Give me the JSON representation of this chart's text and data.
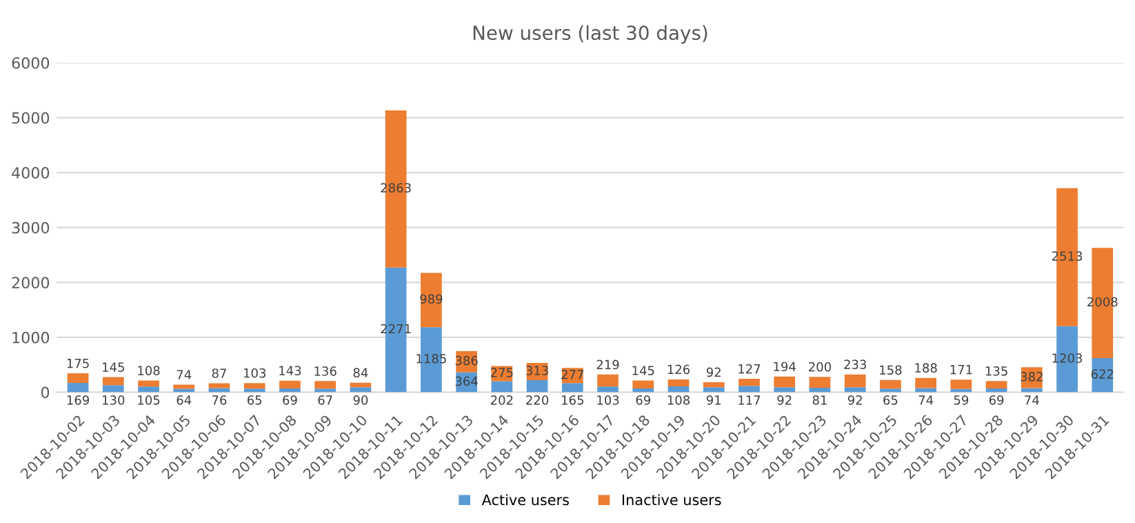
{
  "chart_data": {
    "type": "bar",
    "title": "New users (last 30 days)",
    "stacked": true,
    "data_labels": true,
    "grid": "y",
    "legend": "bottom",
    "categories": [
      "2018-10-02",
      "2018-10-03",
      "2018-10-04",
      "2018-10-05",
      "2018-10-06",
      "2018-10-07",
      "2018-10-08",
      "2018-10-09",
      "2018-10-10",
      "2018-10-11",
      "2018-10-12",
      "2018-10-13",
      "2018-10-14",
      "2018-10-15",
      "2018-10-16",
      "2018-10-17",
      "2018-10-18",
      "2018-10-19",
      "2018-10-20",
      "2018-10-21",
      "2018-10-22",
      "2018-10-23",
      "2018-10-24",
      "2018-10-25",
      "2018-10-26",
      "2018-10-27",
      "2018-10-28",
      "2018-10-29",
      "2018-10-30",
      "2018-10-31"
    ],
    "series": [
      {
        "name": "Active users",
        "color": "#5b9bd5",
        "values": [
          169,
          130,
          105,
          64,
          76,
          65,
          69,
          67,
          90,
          2271,
          1185,
          364,
          202,
          220,
          165,
          103,
          69,
          108,
          91,
          117,
          92,
          81,
          92,
          65,
          74,
          59,
          69,
          74,
          1203,
          622
        ]
      },
      {
        "name": "Inactive users",
        "color": "#ed7d31",
        "values": [
          175,
          145,
          108,
          74,
          87,
          103,
          143,
          136,
          84,
          2863,
          989,
          386,
          275,
          313,
          277,
          219,
          145,
          126,
          92,
          127,
          194,
          200,
          233,
          158,
          188,
          171,
          135,
          382,
          2513,
          2008
        ]
      }
    ],
    "ylim": [
      0,
      6000
    ],
    "yticks": [
      0,
      1000,
      2000,
      3000,
      4000,
      5000,
      6000
    ]
  }
}
